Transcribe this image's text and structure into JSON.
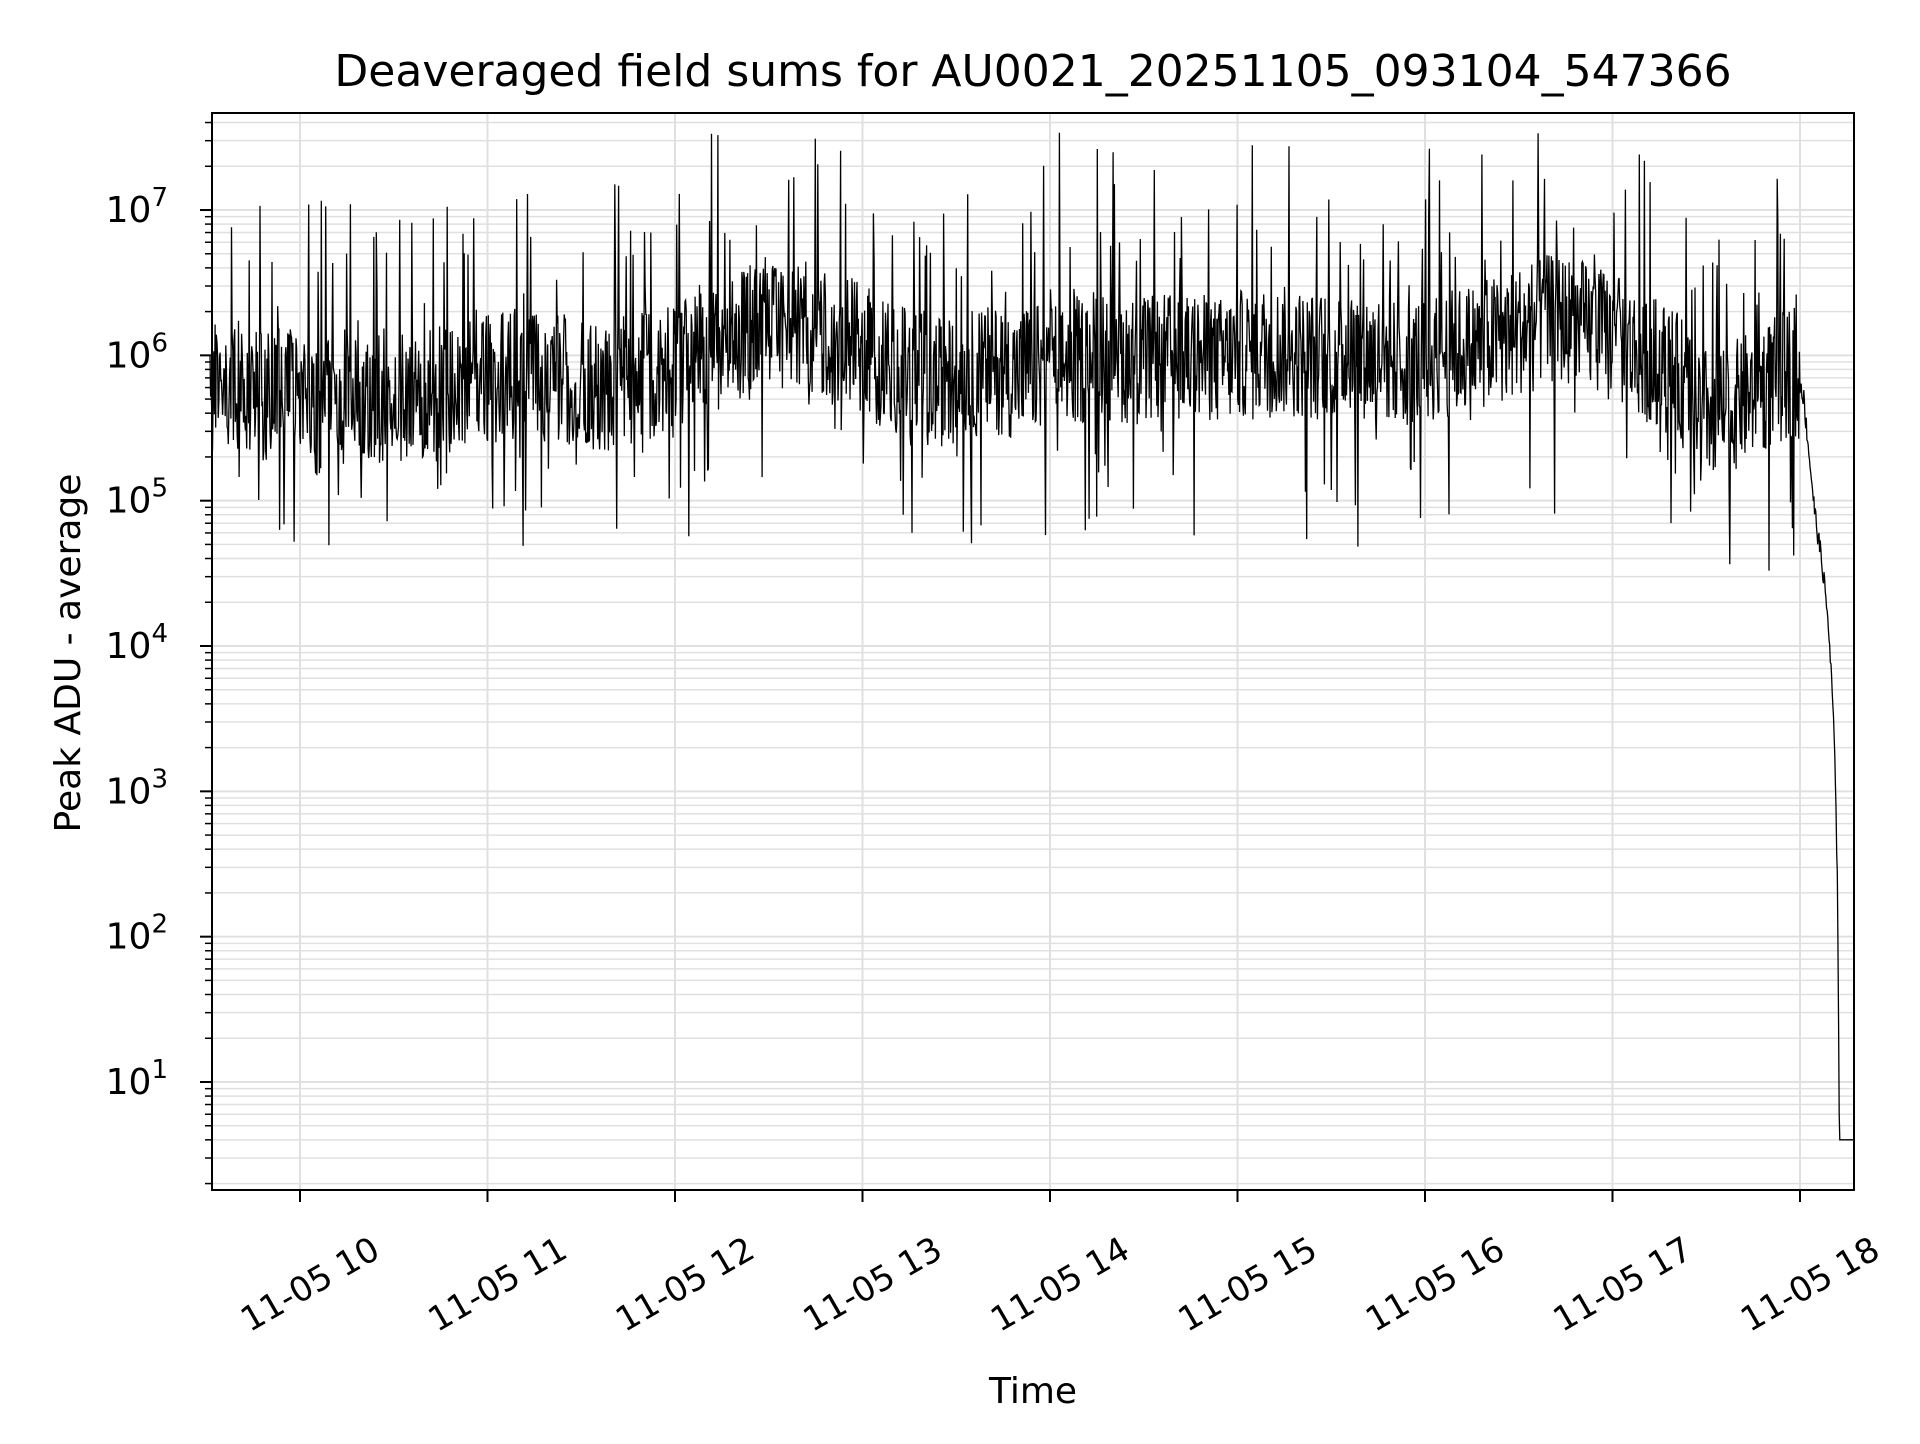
{
  "chart_data": {
    "type": "line",
    "title": "Deaveraged field sums for AU0021_20251105_093104_547366",
    "xlabel": "Time",
    "ylabel": "Peak ADU - average",
    "yscale": "log",
    "ylim": [
      1.7,
      45000000
    ],
    "xlim": [
      "11-05 09:31",
      "11-05 18:18"
    ],
    "grid": true,
    "line_color": "#000000",
    "grid_color": "#e0e0e0",
    "x_ticks": [
      {
        "label": "11-05 10",
        "hour": 10
      },
      {
        "label": "11-05 11",
        "hour": 11
      },
      {
        "label": "11-05 12",
        "hour": 12
      },
      {
        "label": "11-05 13",
        "hour": 13
      },
      {
        "label": "11-05 14",
        "hour": 14
      },
      {
        "label": "11-05 15",
        "hour": 15
      },
      {
        "label": "11-05 16",
        "hour": 16
      },
      {
        "label": "11-05 17",
        "hour": 17
      },
      {
        "label": "11-05 18",
        "hour": 18
      }
    ],
    "y_ticks": [
      {
        "base": "10",
        "exp": "1",
        "value": 10
      },
      {
        "base": "10",
        "exp": "2",
        "value": 100
      },
      {
        "base": "10",
        "exp": "3",
        "value": 1000
      },
      {
        "base": "10",
        "exp": "4",
        "value": 10000
      },
      {
        "base": "10",
        "exp": "5",
        "value": 100000
      },
      {
        "base": "10",
        "exp": "6",
        "value": 1000000
      },
      {
        "base": "10",
        "exp": "7",
        "value": 10000000
      }
    ],
    "series": [
      {
        "x_unit": "hour",
        "points": [
          [
            9.52,
            550000
          ],
          [
            9.6,
            700000
          ],
          [
            9.7,
            600000
          ],
          [
            9.8,
            500000
          ],
          [
            9.9,
            650000
          ],
          [
            10.0,
            450000
          ],
          [
            10.1,
            400000
          ],
          [
            10.2,
            550000
          ],
          [
            10.3,
            500000
          ],
          [
            10.4,
            480000
          ],
          [
            10.5,
            520000
          ],
          [
            10.6,
            480000
          ],
          [
            10.7,
            550000
          ],
          [
            10.8,
            600000
          ],
          [
            10.9,
            650000
          ],
          [
            11.0,
            700000
          ],
          [
            11.1,
            680000
          ],
          [
            11.2,
            650000
          ],
          [
            11.3,
            720000
          ],
          [
            11.4,
            700000
          ],
          [
            11.5,
            650000
          ],
          [
            11.6,
            600000
          ],
          [
            11.7,
            650000
          ],
          [
            11.8,
            700000
          ],
          [
            11.9,
            750000
          ],
          [
            12.0,
            800000
          ],
          [
            12.1,
            900000
          ],
          [
            12.2,
            1100000
          ],
          [
            12.3,
            1300000
          ],
          [
            12.4,
            1500000
          ],
          [
            12.5,
            1600000
          ],
          [
            12.6,
            1700000
          ],
          [
            12.7,
            1600000
          ],
          [
            12.8,
            1500000
          ],
          [
            12.9,
            1300000
          ],
          [
            13.0,
            1100000
          ],
          [
            13.1,
            900000
          ],
          [
            13.2,
            800000
          ],
          [
            13.3,
            700000
          ],
          [
            13.4,
            650000
          ],
          [
            13.5,
            700000
          ],
          [
            13.6,
            750000
          ],
          [
            13.7,
            800000
          ],
          [
            13.8,
            750000
          ],
          [
            13.9,
            800000
          ],
          [
            14.0,
            850000
          ],
          [
            14.1,
            900000
          ],
          [
            14.2,
            950000
          ],
          [
            14.3,
            1000000
          ],
          [
            14.4,
            950000
          ],
          [
            14.5,
            900000
          ],
          [
            14.6,
            950000
          ],
          [
            14.7,
            1000000
          ],
          [
            14.8,
            950000
          ],
          [
            14.9,
            900000
          ],
          [
            15.0,
            1000000
          ],
          [
            15.1,
            1100000
          ],
          [
            15.2,
            1100000
          ],
          [
            15.3,
            1050000
          ],
          [
            15.4,
            1000000
          ],
          [
            15.5,
            1000000
          ],
          [
            15.6,
            1050000
          ],
          [
            15.7,
            1000000
          ],
          [
            15.8,
            950000
          ],
          [
            15.9,
            900000
          ],
          [
            16.0,
            950000
          ],
          [
            16.1,
            1000000
          ],
          [
            16.2,
            1100000
          ],
          [
            16.3,
            1200000
          ],
          [
            16.4,
            1300000
          ],
          [
            16.5,
            1500000
          ],
          [
            16.6,
            1700000
          ],
          [
            16.7,
            1800000
          ],
          [
            16.8,
            1700000
          ],
          [
            16.9,
            1500000
          ],
          [
            17.0,
            1300000
          ],
          [
            17.1,
            1100000
          ],
          [
            17.2,
            950000
          ],
          [
            17.3,
            800000
          ],
          [
            17.4,
            600000
          ],
          [
            17.5,
            400000
          ],
          [
            17.6,
            400000
          ],
          [
            17.7,
            500000
          ],
          [
            17.8,
            600000
          ],
          [
            17.9,
            700000
          ],
          [
            17.95,
            750000
          ],
          [
            18.0,
            700000
          ],
          [
            18.02,
            500000
          ],
          [
            18.05,
            200000
          ],
          [
            18.08,
            80000
          ],
          [
            18.12,
            35000
          ],
          [
            18.15,
            15000
          ],
          [
            18.18,
            3000
          ],
          [
            18.2,
            250
          ],
          [
            18.21,
            4
          ],
          [
            18.29,
            4
          ]
        ]
      }
    ]
  }
}
